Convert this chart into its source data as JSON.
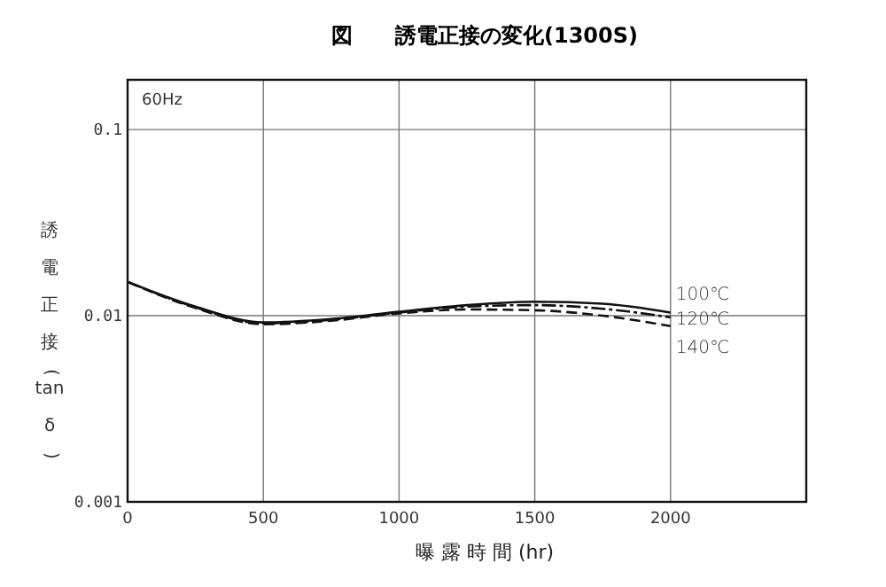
{
  "chart_data": {
    "type": "line",
    "title": "図　　誘電正接の変化(1300S)",
    "xlabel": "曝 露 時 間 (hr)",
    "ylabel": "誘電正接(tanδ)",
    "x": [
      0,
      250,
      500,
      750,
      1000,
      1250,
      1500,
      1750,
      2000
    ],
    "series": [
      {
        "name": "100℃",
        "color": "#111111",
        "line_style": "solid",
        "values": [
          0.0152,
          0.0112,
          0.0092,
          0.0096,
          0.0105,
          0.0114,
          0.0119,
          0.0116,
          0.0104
        ]
      },
      {
        "name": "120℃",
        "color": "#111111",
        "line_style": "dashdot",
        "values": [
          0.0152,
          0.0111,
          0.0091,
          0.0095,
          0.0104,
          0.0112,
          0.0114,
          0.0109,
          0.0098
        ]
      },
      {
        "name": "140℃",
        "color": "#111111",
        "line_style": "dashed",
        "values": [
          0.0152,
          0.011,
          0.009,
          0.0094,
          0.0103,
          0.0108,
          0.0107,
          0.01,
          0.0088
        ]
      }
    ],
    "xlim": [
      0,
      2500
    ],
    "xticks": [
      0,
      500,
      1000,
      1500,
      2000
    ],
    "ylim": [
      0.001,
      0.185
    ],
    "yticks": [
      {
        "value": 0.001,
        "label": "0.001"
      },
      {
        "value": 0.01,
        "label": "0.01"
      },
      {
        "value": 0.1,
        "label": "0.1"
      }
    ],
    "log": "y",
    "grid": true,
    "marker": "none",
    "annotations": [
      "60Hz"
    ]
  }
}
